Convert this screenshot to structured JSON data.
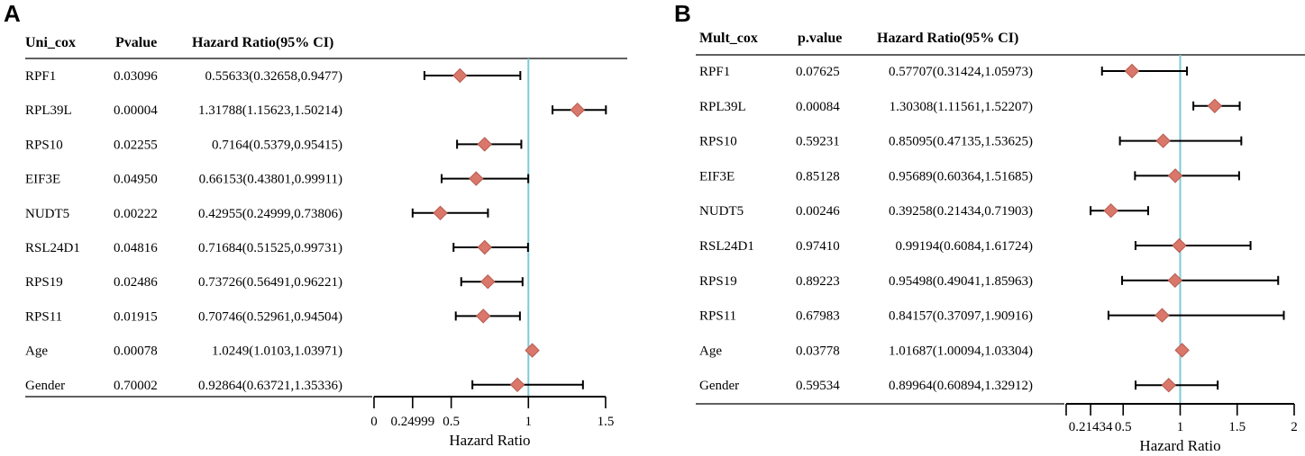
{
  "chart_data": [
    {
      "type": "forest",
      "panel_label": "A",
      "columns": [
        "Uni_cox",
        "Pvalue",
        "Hazard Ratio(95% CI)"
      ],
      "rows": [
        {
          "variable": "RPF1",
          "p": "0.03096",
          "hr_text": "0.55633(0.32658,0.9477)",
          "hr": 0.55633,
          "lo": 0.32658,
          "hi": 0.9477
        },
        {
          "variable": "RPL39L",
          "p": "0.00004",
          "hr_text": "1.31788(1.15623,1.50214)",
          "hr": 1.31788,
          "lo": 1.15623,
          "hi": 1.50214
        },
        {
          "variable": "RPS10",
          "p": "0.02255",
          "hr_text": "0.7164(0.5379,0.95415)",
          "hr": 0.7164,
          "lo": 0.5379,
          "hi": 0.95415
        },
        {
          "variable": "EIF3E",
          "p": "0.04950",
          "hr_text": "0.66153(0.43801,0.99911)",
          "hr": 0.66153,
          "lo": 0.43801,
          "hi": 0.99911
        },
        {
          "variable": "NUDT5",
          "p": "0.00222",
          "hr_text": "0.42955(0.24999,0.73806)",
          "hr": 0.42955,
          "lo": 0.24999,
          "hi": 0.73806
        },
        {
          "variable": "RSL24D1",
          "p": "0.04816",
          "hr_text": "0.71684(0.51525,0.99731)",
          "hr": 0.71684,
          "lo": 0.51525,
          "hi": 0.99731
        },
        {
          "variable": "RPS19",
          "p": "0.02486",
          "hr_text": "0.73726(0.56491,0.96221)",
          "hr": 0.73726,
          "lo": 0.56491,
          "hi": 0.96221
        },
        {
          "variable": "RPS11",
          "p": "0.01915",
          "hr_text": "0.70746(0.52961,0.94504)",
          "hr": 0.70746,
          "lo": 0.52961,
          "hi": 0.94504
        },
        {
          "variable": "Age",
          "p": "0.00078",
          "hr_text": "1.0249(1.0103,1.03971)",
          "hr": 1.0249,
          "lo": 1.0103,
          "hi": 1.03971
        },
        {
          "variable": "Gender",
          "p": "0.70002",
          "hr_text": "0.92864(0.63721,1.35336)",
          "hr": 0.92864,
          "lo": 0.63721,
          "hi": 1.35336
        }
      ],
      "x_ticks": [
        0,
        0.24999,
        0.5,
        1,
        1.5
      ],
      "x_tick_labels": [
        "0",
        "0.24999",
        "0.5",
        "1",
        "1.5"
      ],
      "xlim": [
        0,
        1.5
      ],
      "reference_line": 1,
      "xlabel": "Hazard Ratio"
    },
    {
      "type": "forest",
      "panel_label": "B",
      "columns": [
        "Mult_cox",
        "p.value",
        "Hazard Ratio(95% CI)"
      ],
      "rows": [
        {
          "variable": "RPF1",
          "p": "0.07625",
          "hr_text": "0.57707(0.31424,1.05973)",
          "hr": 0.57707,
          "lo": 0.31424,
          "hi": 1.05973
        },
        {
          "variable": "RPL39L",
          "p": "0.00084",
          "hr_text": "1.30308(1.11561,1.52207)",
          "hr": 1.30308,
          "lo": 1.11561,
          "hi": 1.52207
        },
        {
          "variable": "RPS10",
          "p": "0.59231",
          "hr_text": "0.85095(0.47135,1.53625)",
          "hr": 0.85095,
          "lo": 0.47135,
          "hi": 1.53625
        },
        {
          "variable": "EIF3E",
          "p": "0.85128",
          "hr_text": "0.95689(0.60364,1.51685)",
          "hr": 0.95689,
          "lo": 0.60364,
          "hi": 1.51685
        },
        {
          "variable": "NUDT5",
          "p": "0.00246",
          "hr_text": "0.39258(0.21434,0.71903)",
          "hr": 0.39258,
          "lo": 0.21434,
          "hi": 0.71903
        },
        {
          "variable": "RSL24D1",
          "p": "0.97410",
          "hr_text": "0.99194(0.6084,1.61724)",
          "hr": 0.99194,
          "lo": 0.6084,
          "hi": 1.61724
        },
        {
          "variable": "RPS19",
          "p": "0.89223",
          "hr_text": "0.95498(0.49041,1.85963)",
          "hr": 0.95498,
          "lo": 0.49041,
          "hi": 1.85963
        },
        {
          "variable": "RPS11",
          "p": "0.67983",
          "hr_text": "0.84157(0.37097,1.90916)",
          "hr": 0.84157,
          "lo": 0.37097,
          "hi": 1.90916
        },
        {
          "variable": "Age",
          "p": "0.03778",
          "hr_text": "1.01687(1.00094,1.03304)",
          "hr": 1.01687,
          "lo": 1.00094,
          "hi": 1.03304
        },
        {
          "variable": "Gender",
          "p": "0.59534",
          "hr_text": "0.89964(0.60894,1.32912)",
          "hr": 0.89964,
          "lo": 0.60894,
          "hi": 1.32912
        }
      ],
      "x_ticks": [
        0,
        0.21434,
        0.5,
        1,
        1.5,
        2
      ],
      "x_tick_labels": [
        "",
        "0.21434",
        "0.5",
        "1",
        "1.5",
        "2"
      ],
      "xlim": [
        0,
        2
      ],
      "reference_line": 1,
      "xlabel": "Hazard Ratio"
    }
  ],
  "colors": {
    "diamond_fill": "#d9776a",
    "diamond_stroke": "#b85a4f",
    "reference_line": "#7ec8d6",
    "ci_line": "#000000",
    "rule": "#000000"
  }
}
